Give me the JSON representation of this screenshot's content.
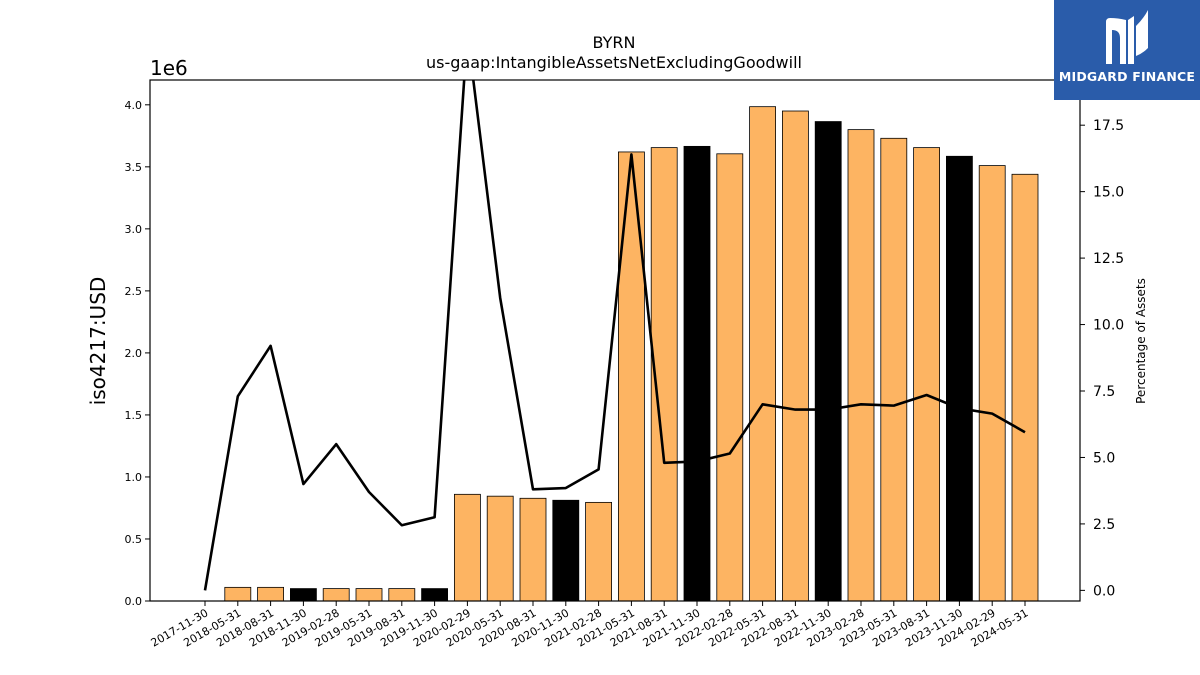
{
  "chart_data": {
    "type": "bar",
    "title": "BYRN",
    "subtitle": "us-gaap:IntangibleAssetsNetExcludingGoodwill",
    "ylabel": "iso4217:USD",
    "y2label": "Percentage of Assets",
    "y_offset_label": "1e6",
    "ylim": [
      0,
      4200000
    ],
    "y2lim": [
      -0.4,
      19.2
    ],
    "yticks": [
      "0.0",
      "0.5",
      "1.0",
      "1.5",
      "2.0",
      "2.5",
      "3.0",
      "3.5",
      "4.0"
    ],
    "y2ticks": [
      "0.0",
      "2.5",
      "5.0",
      "7.5",
      "10.0",
      "12.5",
      "15.0",
      "17.5"
    ],
    "categories": [
      "2017-11-30",
      "2018-05-31",
      "2018-08-31",
      "2018-11-30",
      "2019-02-28",
      "2019-05-31",
      "2019-08-31",
      "2019-11-30",
      "2020-02-29",
      "2020-05-31",
      "2020-08-31",
      "2020-11-30",
      "2021-02-28",
      "2021-05-31",
      "2021-08-31",
      "2021-11-30",
      "2022-02-28",
      "2022-05-31",
      "2022-08-31",
      "2022-11-30",
      "2023-02-28",
      "2023-05-31",
      "2023-08-31",
      "2023-11-30",
      "2024-02-29",
      "2024-05-31"
    ],
    "series": [
      {
        "kind": "bar",
        "values": [
          0,
          110000,
          110000,
          100000,
          100000,
          100000,
          100000,
          100000,
          860000,
          845000,
          828000,
          812000,
          795000,
          3620000,
          3655000,
          3665000,
          3605000,
          3985000,
          3950000,
          3865000,
          3800000,
          3730000,
          3655000,
          3585000,
          3510000,
          3440000
        ],
        "highlight": [
          false,
          false,
          false,
          true,
          false,
          false,
          false,
          true,
          false,
          false,
          false,
          true,
          false,
          false,
          false,
          true,
          false,
          false,
          false,
          true,
          false,
          false,
          false,
          true,
          false,
          false
        ],
        "color": "#fdb462",
        "highlight_color": "#000000"
      },
      {
        "kind": "line",
        "axis": "right",
        "values": [
          0.0,
          7.3,
          9.2,
          4.0,
          5.5,
          3.7,
          2.45,
          2.75,
          21.0,
          11.0,
          3.8,
          3.85,
          4.55,
          16.4,
          4.8,
          4.85,
          5.15,
          7.0,
          6.8,
          6.8,
          7.0,
          6.95,
          7.35,
          6.85,
          6.65,
          5.95
        ],
        "color": "#000000"
      }
    ]
  },
  "brand": {
    "name": "MIDGARD FINANCE",
    "color": "#2a5caa"
  }
}
